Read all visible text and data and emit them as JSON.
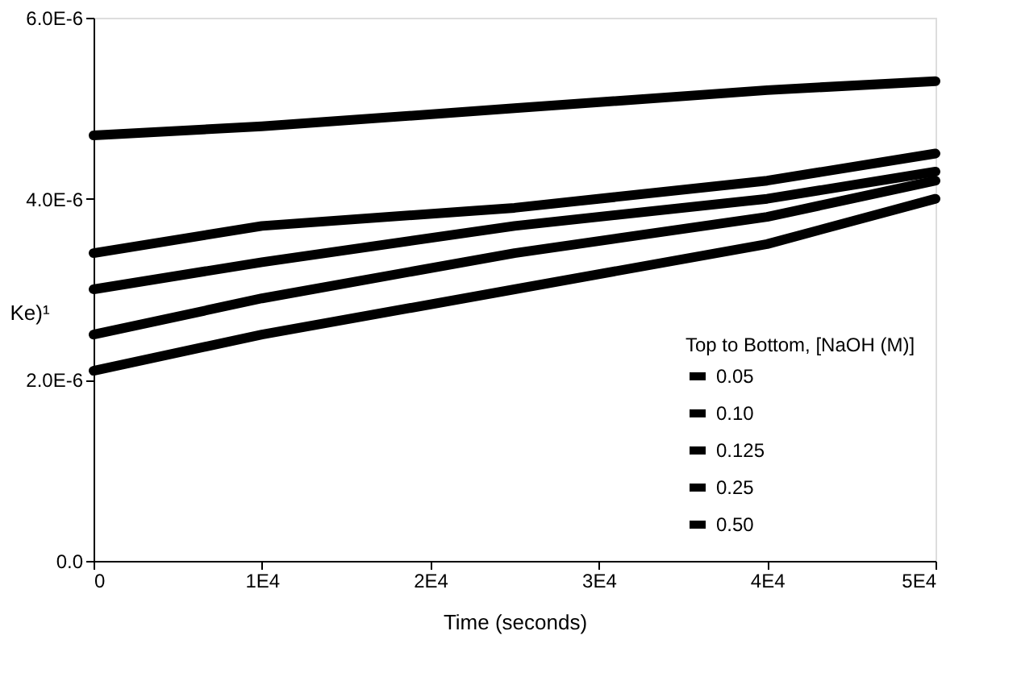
{
  "chart_data": {
    "type": "line",
    "xlabel": "Time (seconds)",
    "ylabel": "Ke)¹",
    "legend_title": "Top to Bottom, [NaOH (M)]",
    "x": [
      0,
      10000,
      25000,
      40000,
      50000
    ],
    "series": [
      {
        "name": "0.05",
        "color": "#000000",
        "values": [
          4.7e-06,
          4.8e-06,
          5e-06,
          5.2e-06,
          5.3e-06
        ]
      },
      {
        "name": "0.10",
        "color": "#000000",
        "values": [
          3.4e-06,
          3.7e-06,
          3.9e-06,
          4.2e-06,
          4.5e-06
        ]
      },
      {
        "name": "0.125",
        "color": "#000000",
        "values": [
          3e-06,
          3.3e-06,
          3.7e-06,
          4e-06,
          4.3e-06
        ]
      },
      {
        "name": "0.25",
        "color": "#000000",
        "values": [
          2.5e-06,
          2.9e-06,
          3.4e-06,
          3.8e-06,
          4.2e-06
        ]
      },
      {
        "name": "0.50",
        "color": "#000000",
        "values": [
          2.1e-06,
          2.5e-06,
          3e-06,
          3.5e-06,
          4e-06
        ]
      }
    ],
    "xlim": [
      0,
      50000
    ],
    "xticks": [
      {
        "value": 0,
        "label": "0"
      },
      {
        "value": 10000,
        "label": "1E4"
      },
      {
        "value": 20000,
        "label": "2E4"
      },
      {
        "value": 30000,
        "label": "3E4"
      },
      {
        "value": 40000,
        "label": "4E4"
      },
      {
        "value": 50000,
        "label": "5E4"
      }
    ],
    "ylim": [
      0,
      6e-06
    ],
    "yticks": [
      {
        "value": 0,
        "label": "0.0"
      },
      {
        "value": 2e-06,
        "label": "2.0E-6"
      },
      {
        "value": 4e-06,
        "label": "4.0E-6"
      },
      {
        "value": 6e-06,
        "label": "6.0E-6"
      }
    ],
    "grid": false,
    "legend": "bottom right",
    "marker": "none",
    "line_style": "solid"
  }
}
